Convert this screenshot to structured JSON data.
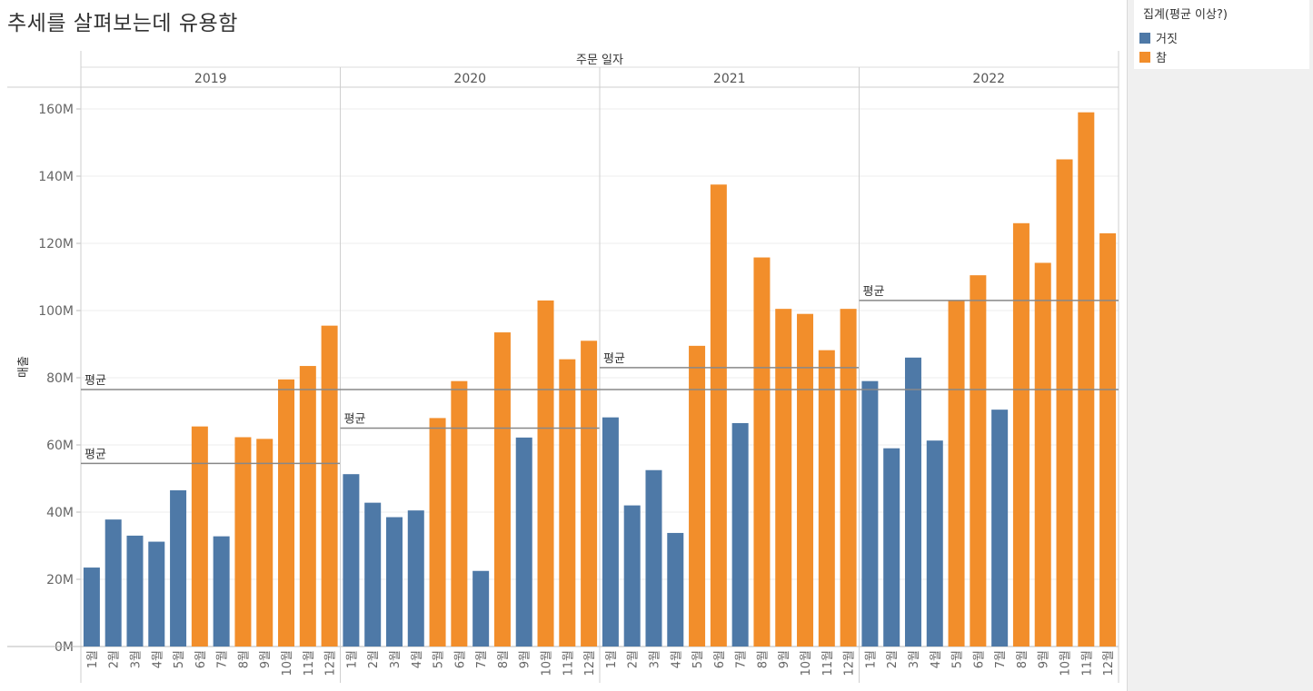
{
  "title": "추세를 살펴보는데 유용함",
  "legend": {
    "title": "집계(평균 이상?)",
    "items": [
      {
        "label": "거짓",
        "color": "#4e79a7"
      },
      {
        "label": "참",
        "color": "#f28e2b"
      }
    ]
  },
  "chart_data": {
    "type": "bar",
    "header_label": "주문 일자",
    "ylabel": "매출",
    "ylim": [
      0,
      160000000
    ],
    "y_ticks": [
      0,
      20000000,
      40000000,
      60000000,
      80000000,
      100000000,
      120000000,
      140000000,
      160000000
    ],
    "y_tick_labels": [
      "0M",
      "20M",
      "40M",
      "60M",
      "80M",
      "100M",
      "120M",
      "140M",
      "160M"
    ],
    "colors": {
      "false": "#4e79a7",
      "true": "#f28e2b"
    },
    "month_labels": [
      "1월",
      "2월",
      "3월",
      "4월",
      "5월",
      "6월",
      "7월",
      "8월",
      "9월",
      "10월",
      "11월",
      "12월"
    ],
    "overall_average": 76500000,
    "average_label": "평균",
    "panels": [
      {
        "year": "2019",
        "average": 54500000,
        "values": [
          23500000,
          37800000,
          33000000,
          31200000,
          46500000,
          65500000,
          32800000,
          62300000,
          61800000,
          79500000,
          83500000,
          95500000
        ],
        "above_average": [
          false,
          false,
          false,
          false,
          false,
          true,
          false,
          true,
          true,
          true,
          true,
          true
        ]
      },
      {
        "year": "2020",
        "average": 65000000,
        "values": [
          51300000,
          42800000,
          38500000,
          40500000,
          68000000,
          79000000,
          22500000,
          93500000,
          62200000,
          103000000,
          85500000,
          91000000
        ],
        "above_average": [
          false,
          false,
          false,
          false,
          true,
          true,
          false,
          true,
          false,
          true,
          true,
          true
        ]
      },
      {
        "year": "2021",
        "average": 83000000,
        "values": [
          68200000,
          42000000,
          52500000,
          33800000,
          89500000,
          137500000,
          66500000,
          115800000,
          100500000,
          99000000,
          88200000,
          100500000
        ],
        "above_average": [
          false,
          false,
          false,
          false,
          true,
          true,
          false,
          true,
          true,
          true,
          true,
          true
        ]
      },
      {
        "year": "2022",
        "average": 103000000,
        "values": [
          79000000,
          59000000,
          86000000,
          61300000,
          103000000,
          110500000,
          70500000,
          126000000,
          114200000,
          145000000,
          159000000,
          123000000
        ],
        "above_average": [
          false,
          false,
          false,
          false,
          true,
          true,
          false,
          true,
          true,
          true,
          true,
          true
        ]
      }
    ]
  }
}
